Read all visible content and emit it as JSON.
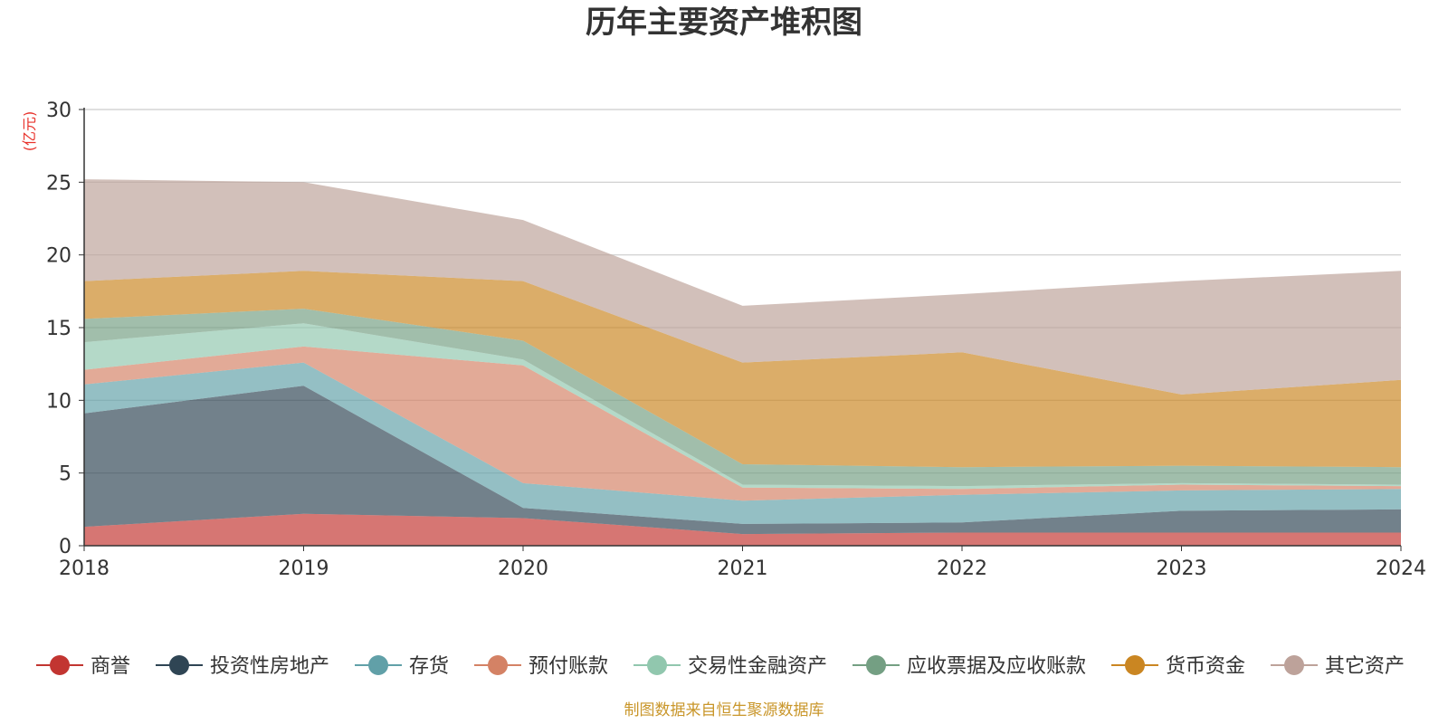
{
  "chart_data": {
    "type": "area",
    "stacked": true,
    "title": "历年主要资产堆积图",
    "unit_label": "(亿元)",
    "x": [
      "2018",
      "2019",
      "2020",
      "2021",
      "2022",
      "2023",
      "2024"
    ],
    "ylim": [
      0,
      30
    ],
    "yticks": [
      0,
      5,
      10,
      15,
      20,
      25,
      30
    ],
    "grid": true,
    "legend_position": "bottom",
    "series": [
      {
        "name": "商誉",
        "color": "#c23531",
        "values": [
          1.3,
          2.2,
          1.9,
          0.8,
          0.9,
          0.9,
          0.9
        ]
      },
      {
        "name": "投资性房地产",
        "color": "#2f4554",
        "values": [
          7.8,
          8.8,
          0.7,
          0.7,
          0.7,
          1.5,
          1.6
        ]
      },
      {
        "name": "存货",
        "color": "#61a0a8",
        "values": [
          2.0,
          1.6,
          1.7,
          1.6,
          1.9,
          1.4,
          1.4
        ]
      },
      {
        "name": "预付账款",
        "color": "#d48265",
        "values": [
          1.0,
          1.1,
          8.1,
          0.9,
          0.4,
          0.4,
          0.2
        ]
      },
      {
        "name": "交易性金融资产",
        "color": "#91c7ae",
        "values": [
          1.9,
          1.6,
          0.4,
          0.2,
          0.2,
          0.1,
          0.1
        ]
      },
      {
        "name": "应收票据及应收账款",
        "color": "#749f83",
        "values": [
          1.6,
          1.0,
          1.3,
          1.4,
          1.3,
          1.2,
          1.2
        ]
      },
      {
        "name": "货币资金",
        "color": "#ca8622",
        "values": [
          2.6,
          2.6,
          4.1,
          7.0,
          7.9,
          4.9,
          6.0
        ]
      },
      {
        "name": "其它资产",
        "color": "#bda29a",
        "values": [
          7.0,
          6.1,
          4.2,
          3.9,
          4.0,
          7.8,
          7.5
        ]
      }
    ],
    "source_note": "制图数据来自恒生聚源数据库"
  }
}
